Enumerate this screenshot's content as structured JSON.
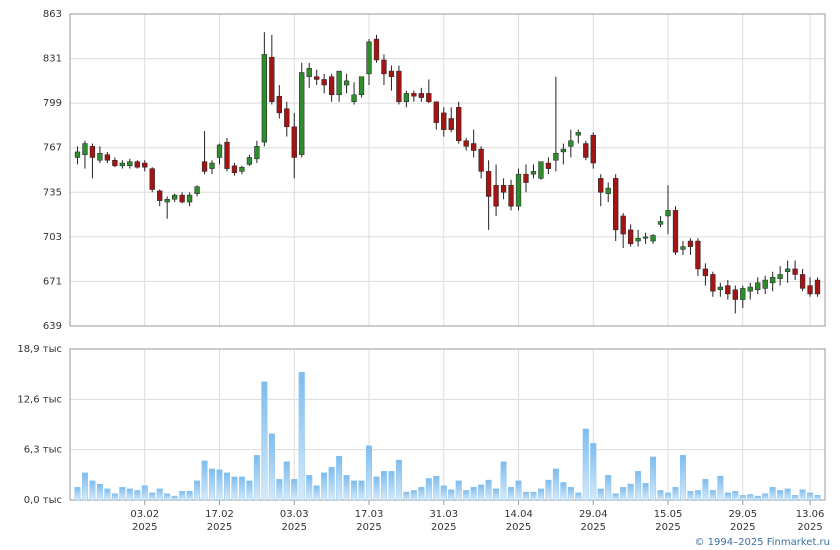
{
  "chart_data": [
    {
      "type": "candlestick",
      "up_color": "#2e8b2e",
      "down_color": "#a31515",
      "open": [
        760,
        762,
        768,
        758,
        762,
        758,
        754,
        754,
        757,
        756,
        752,
        736,
        728,
        730,
        733,
        728,
        734,
        757,
        752,
        760,
        771,
        754,
        750,
        755,
        759,
        771,
        832,
        804,
        795,
        782,
        762,
        818,
        818,
        816,
        818,
        805,
        812,
        800,
        805,
        820,
        845,
        830,
        822,
        822,
        800,
        806,
        806,
        806,
        800,
        792,
        788,
        796,
        772,
        770,
        766,
        750,
        740,
        740,
        740,
        725,
        748,
        748,
        745,
        756,
        758,
        764,
        768,
        776,
        770,
        776,
        745,
        734,
        745,
        718,
        708,
        700,
        702,
        700,
        712,
        718,
        722,
        694,
        700,
        700,
        680,
        676,
        665,
        668,
        665,
        658,
        664,
        665,
        666,
        670,
        673,
        678,
        680,
        676,
        668,
        672
      ],
      "high": [
        768,
        772,
        770,
        768,
        764,
        760,
        758,
        759,
        758,
        758,
        753,
        737,
        732,
        734,
        735,
        735,
        740,
        779,
        758,
        770,
        774,
        756,
        754,
        762,
        772,
        850,
        848,
        812,
        800,
        792,
        828,
        828,
        823,
        820,
        820,
        822,
        820,
        814,
        818,
        845,
        848,
        834,
        826,
        826,
        808,
        808,
        810,
        816,
        800,
        796,
        796,
        800,
        774,
        780,
        768,
        758,
        755,
        745,
        744,
        752,
        755,
        755,
        757,
        760,
        818,
        770,
        780,
        780,
        772,
        778,
        748,
        742,
        748,
        720,
        712,
        708,
        706,
        705,
        718,
        740,
        725,
        700,
        702,
        702,
        684,
        678,
        670,
        672,
        668,
        668,
        670,
        674,
        675,
        678,
        682,
        686,
        686,
        680,
        674,
        674
      ],
      "low": [
        755,
        752,
        745,
        756,
        756,
        753,
        752,
        752,
        752,
        750,
        735,
        725,
        716,
        728,
        727,
        725,
        732,
        748,
        748,
        755,
        750,
        747,
        748,
        754,
        756,
        768,
        798,
        788,
        775,
        745,
        760,
        810,
        812,
        806,
        800,
        800,
        806,
        798,
        803,
        812,
        828,
        812,
        808,
        798,
        796,
        800,
        800,
        799,
        780,
        775,
        778,
        770,
        765,
        760,
        745,
        708,
        718,
        730,
        722,
        722,
        735,
        745,
        744,
        748,
        750,
        755,
        760,
        770,
        758,
        752,
        725,
        728,
        700,
        695,
        696,
        696,
        698,
        698,
        710,
        705,
        690,
        690,
        690,
        675,
        668,
        660,
        660,
        658,
        648,
        652,
        658,
        662,
        662,
        664,
        668,
        670,
        672,
        664,
        660,
        660
      ],
      "close": [
        764,
        770,
        760,
        763,
        758,
        754,
        756,
        757,
        753,
        753,
        737,
        729,
        730,
        733,
        728,
        733,
        739,
        750,
        756,
        769,
        752,
        749,
        753,
        760,
        768,
        834,
        800,
        792,
        782,
        760,
        821,
        824,
        816,
        812,
        805,
        822,
        815,
        805,
        818,
        843,
        830,
        820,
        818,
        800,
        806,
        804,
        803,
        800,
        785,
        780,
        780,
        772,
        768,
        765,
        750,
        732,
        725,
        735,
        725,
        748,
        742,
        750,
        757,
        752,
        763,
        766,
        772,
        778,
        760,
        756,
        735,
        738,
        708,
        705,
        698,
        702,
        703,
        704,
        714,
        722,
        692,
        696,
        696,
        680,
        675,
        664,
        667,
        662,
        658,
        666,
        667,
        670,
        672,
        674,
        676,
        680,
        676,
        666,
        662,
        662
      ],
      "xlim": [
        -1,
        100
      ],
      "ylim": [
        639,
        863
      ],
      "yticks": [
        639,
        671,
        703,
        735,
        767,
        799,
        831,
        863
      ],
      "grid": true
    },
    {
      "type": "bar",
      "color": "#7dbcee",
      "values": [
        1.6,
        3.4,
        2.4,
        2.0,
        1.4,
        0.8,
        1.6,
        1.4,
        1.2,
        1.8,
        0.9,
        1.4,
        0.8,
        0.5,
        1.1,
        1.1,
        2.4,
        4.9,
        3.9,
        3.8,
        3.4,
        2.9,
        2.9,
        2.4,
        5.6,
        14.8,
        8.3,
        2.6,
        4.8,
        2.6,
        16,
        3.1,
        1.8,
        3.4,
        4.1,
        5.5,
        3.1,
        2.4,
        2.4,
        6.8,
        2.9,
        3.6,
        3.6,
        5.0,
        1.0,
        1.2,
        1.6,
        2.7,
        3.0,
        1.8,
        1.3,
        2.4,
        1.2,
        1.6,
        1.9,
        2.5,
        1.4,
        4.8,
        1.6,
        2.4,
        1.0,
        1.0,
        1.4,
        2.5,
        3.9,
        2.2,
        1.6,
        0.9,
        8.9,
        7.1,
        1.4,
        3.1,
        0.8,
        1.6,
        2.0,
        3.6,
        2.1,
        5.4,
        1.2,
        0.9,
        1.6,
        5.6,
        1.1,
        1.2,
        2.6,
        1.2,
        3.0,
        0.9,
        1.1,
        0.6,
        0.7,
        0.5,
        0.8,
        1.6,
        1.2,
        1.4,
        0.6,
        1.3,
        0.9,
        0.6
      ],
      "xlim": [
        -1,
        100
      ],
      "ylim": [
        0,
        18.9
      ],
      "yticks": [
        {
          "value": 0,
          "label": "0,0 тыс"
        },
        {
          "value": 6.3,
          "label": "6,3 тыс"
        },
        {
          "value": 12.6,
          "label": "12,6 тыс"
        },
        {
          "value": 18.9,
          "label": "18,9 тыс"
        }
      ],
      "xticks": [
        {
          "value": 9,
          "label": "03.02",
          "year": "2025"
        },
        {
          "value": 19,
          "label": "17.02",
          "year": "2025"
        },
        {
          "value": 29,
          "label": "03.03",
          "year": "2025"
        },
        {
          "value": 39,
          "label": "17.03",
          "year": "2025"
        },
        {
          "value": 49,
          "label": "31.03",
          "year": "2025"
        },
        {
          "value": 59,
          "label": "14.04",
          "year": "2025"
        },
        {
          "value": 69,
          "label": "29.04",
          "year": "2025"
        },
        {
          "value": 79,
          "label": "15.05",
          "year": "2025"
        },
        {
          "value": 89,
          "label": "29.05",
          "year": "2025"
        },
        {
          "value": 98,
          "label": "13.06",
          "year": "2025"
        }
      ],
      "grid": true
    }
  ],
  "footer": "© 1994–2025 Finmarket.ru"
}
